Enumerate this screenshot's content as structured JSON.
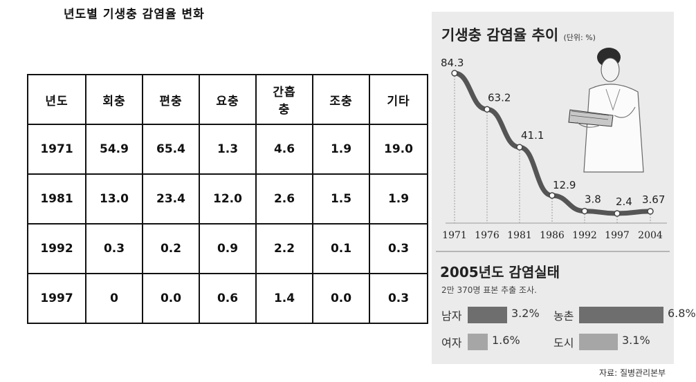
{
  "left": {
    "title": "년도별 기생충 감염율 변화",
    "table": {
      "headers": [
        "년도",
        "회충",
        "편충",
        "요충",
        "간흡\n충",
        "조충",
        "기타"
      ],
      "rows": [
        [
          "1971",
          "54.9",
          "65.4",
          "1.3",
          "4.6",
          "1.9",
          "19.0"
        ],
        [
          "1981",
          "13.0",
          "23.4",
          "12.0",
          "2.6",
          "1.5",
          "1.9"
        ],
        [
          "1992",
          "0.3",
          "0.2",
          "0.9",
          "2.2",
          "0.1",
          "0.3"
        ],
        [
          "1997",
          "0",
          "0.0",
          "0.6",
          "1.4",
          "0.0",
          "0.3"
        ]
      ]
    }
  },
  "right": {
    "title": "기생충 감염율 추이",
    "unit": "(단위: %)",
    "survey_title": "2005년도 감염실태",
    "survey_sub": "2만 370명 표본 추출 조사.",
    "source": "자료: 질병관리본부",
    "line_color": "#555555",
    "male_color": "#6e6e6e",
    "female_color": "#a6a6a6"
  },
  "chart_data": [
    {
      "type": "table",
      "title": "년도별 기생충 감염율 변화",
      "columns": [
        "년도",
        "회충",
        "편충",
        "요충",
        "간흡충",
        "조충",
        "기타"
      ],
      "rows": [
        [
          1971,
          54.9,
          65.4,
          1.3,
          4.6,
          1.9,
          19.0
        ],
        [
          1981,
          13.0,
          23.4,
          12.0,
          2.6,
          1.5,
          1.9
        ],
        [
          1992,
          0.3,
          0.2,
          0.9,
          2.2,
          0.1,
          0.3
        ],
        [
          1997,
          0,
          0.0,
          0.6,
          1.4,
          0.0,
          0.3
        ]
      ]
    },
    {
      "type": "line",
      "title": "기생충 감염율 추이",
      "unit": "(단위: %)",
      "categories": [
        "1971",
        "1976",
        "1981",
        "1986",
        "1992",
        "1997",
        "2004"
      ],
      "values": [
        84.3,
        63.2,
        41.1,
        12.9,
        3.8,
        2.4,
        3.67
      ],
      "value_labels": [
        "84.3",
        "63.2",
        "41.1",
        "12.9",
        "3.8",
        "2.4",
        "3.67"
      ],
      "grid": false
    },
    {
      "type": "bar",
      "title": "2005년도 감염실태",
      "subtitle": "2만 370명 표본 추출 조사.",
      "bars": [
        {
          "label": "남자",
          "value": 3.2,
          "text": "3.2%"
        },
        {
          "label": "여자",
          "value": 1.6,
          "text": "1.6%"
        },
        {
          "label": "농촌",
          "value": 6.8,
          "text": "6.8%"
        },
        {
          "label": "도시",
          "value": 3.1,
          "text": "3.1%"
        }
      ]
    }
  ]
}
